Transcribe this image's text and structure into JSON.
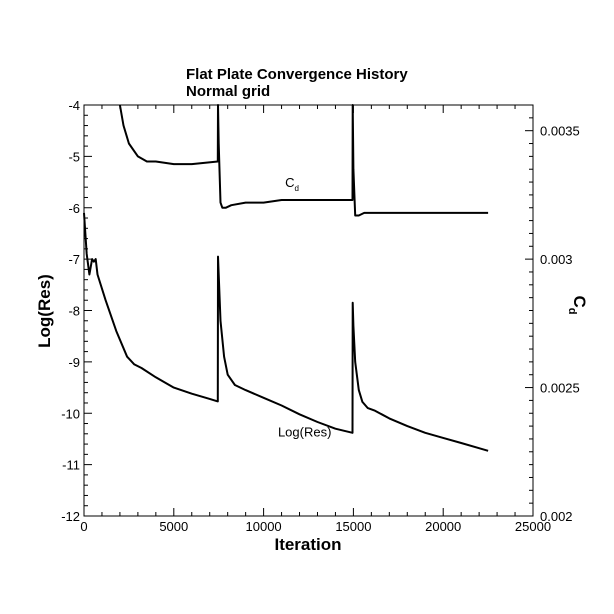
{
  "chart_data": {
    "type": "line",
    "title": "Flat Plate Convergence History",
    "subtitle": "Normal grid",
    "xlabel": "Iteration",
    "ylabel_left": "Log(Res)",
    "ylabel_right": "C",
    "ylabel_right_sub": "d",
    "xlim": [
      0,
      25000
    ],
    "ylim_left": [
      -12,
      -4
    ],
    "ylim_right": [
      0.002,
      0.0036
    ],
    "x_ticks": [
      0,
      5000,
      10000,
      15000,
      20000,
      25000
    ],
    "x_tick_labels": [
      "0",
      "5000",
      "10000",
      "15000",
      "20000",
      "25000"
    ],
    "y_left_ticks": [
      -12,
      -11,
      -10,
      -9,
      -8,
      -7,
      -6,
      -5,
      -4
    ],
    "y_left_tick_labels": [
      "-12",
      "-11",
      "-10",
      "-9",
      "-8",
      "-7",
      "-6",
      "-5",
      "-4"
    ],
    "y_right_ticks": [
      0.002,
      0.0025,
      0.003,
      0.0035
    ],
    "y_right_tick_labels": [
      "0.002",
      "0.0025",
      "0.003",
      "0.0035"
    ],
    "grid": false,
    "annotations": [
      {
        "text": "C",
        "sub": "d",
        "series": "Cd",
        "x": 11200,
        "y": 0.00328
      },
      {
        "text": "Log(Res)",
        "series": "Log(Res)",
        "x": 10800,
        "y": 0.00231
      }
    ],
    "series": [
      {
        "name": "Log(Res)",
        "axis": "left",
        "x": [
          0,
          150,
          300,
          450,
          550,
          650,
          750,
          1200,
          1800,
          2400,
          2800,
          3200,
          4000,
          5000,
          6000,
          7000,
          7450,
          7460,
          7500,
          7600,
          7800,
          8000,
          8400,
          9000,
          10000,
          11000,
          12000,
          13000,
          14000,
          14950,
          14960,
          15000,
          15100,
          15300,
          15500,
          15800,
          16200,
          17000,
          18000,
          19000,
          20000,
          21000,
          22000,
          22500
        ],
        "y": [
          -6.1,
          -6.9,
          -7.3,
          -7.0,
          -7.05,
          -7.0,
          -7.3,
          -7.8,
          -8.4,
          -8.9,
          -9.05,
          -9.12,
          -9.3,
          -9.5,
          -9.62,
          -9.72,
          -9.77,
          -6.95,
          -7.3,
          -8.2,
          -8.9,
          -9.25,
          -9.45,
          -9.55,
          -9.7,
          -9.85,
          -10.02,
          -10.17,
          -10.3,
          -10.38,
          -7.85,
          -8.3,
          -9.0,
          -9.55,
          -9.78,
          -9.9,
          -9.95,
          -10.1,
          -10.25,
          -10.38,
          -10.48,
          -10.58,
          -10.68,
          -10.73
        ],
        "color": "#000000"
      },
      {
        "name": "Cd",
        "axis": "right",
        "x": [
          2000,
          2200,
          2500,
          3000,
          3500,
          4000,
          5000,
          6000,
          7450,
          7460,
          7500,
          7600,
          7700,
          7900,
          8200,
          9000,
          10000,
          11000,
          12000,
          13000,
          14000,
          14950,
          14960,
          15000,
          15100,
          15300,
          15600,
          16000,
          17000,
          18000,
          19000,
          20000,
          21000,
          22000,
          22500
        ],
        "y": [
          0.0036,
          0.00352,
          0.00345,
          0.0034,
          0.00338,
          0.00338,
          0.00337,
          0.00337,
          0.00338,
          0.0036,
          0.00345,
          0.00322,
          0.0032,
          0.0032,
          0.00321,
          0.00322,
          0.00322,
          0.00323,
          0.00323,
          0.00323,
          0.00323,
          0.00323,
          0.0036,
          0.00335,
          0.00317,
          0.00317,
          0.00318,
          0.00318,
          0.00318,
          0.00318,
          0.00318,
          0.00318,
          0.00318,
          0.00318,
          0.00318
        ],
        "color": "#000000"
      }
    ]
  }
}
